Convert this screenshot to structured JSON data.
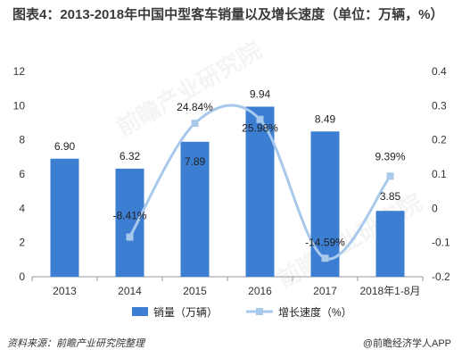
{
  "title": "图表4：2013-2018年中国中型客车销量以及增长速度（单位：万辆，%）",
  "footer": {
    "source": "资料来源：前瞻产业研究院整理",
    "brand": "@前瞻经济学人APP"
  },
  "watermark": {
    "text_1": "前瞻产业研究院",
    "text_2": "前瞻产业研究院"
  },
  "chart_data": {
    "type": "bar",
    "categories": [
      "2013",
      "2014",
      "2015",
      "2016",
      "2017",
      "2018年1-8月"
    ],
    "series": [
      {
        "name": "销量（万辆）",
        "type": "bar",
        "axis": "left",
        "color": "#3c7ed1",
        "values": [
          6.9,
          6.32,
          7.89,
          9.94,
          8.49,
          3.85
        ],
        "labels": [
          "6.90",
          "6.32",
          "7.89",
          "9.94",
          "8.49",
          "3.85"
        ]
      },
      {
        "name": "增长速度（%）",
        "type": "line",
        "axis": "right",
        "color": "#a8c9ec",
        "values": [
          null,
          -0.0841,
          0.2484,
          0.2598,
          -0.1459,
          0.0939
        ],
        "labels": [
          "",
          "-8.41%",
          "24.84%",
          "25.98%",
          "-14.59%",
          "9.39%"
        ]
      }
    ],
    "y_left": {
      "lim": [
        0,
        12
      ],
      "ticks": [
        "0",
        "2",
        "4",
        "6",
        "8",
        "10",
        "12"
      ]
    },
    "y_right": {
      "lim": [
        -0.2,
        0.4
      ],
      "ticks": [
        "-0.2",
        "-0.1",
        "0",
        "0.1",
        "0.2",
        "0.3",
        "0.4"
      ]
    },
    "grid": false,
    "legend_position": "bottom"
  }
}
